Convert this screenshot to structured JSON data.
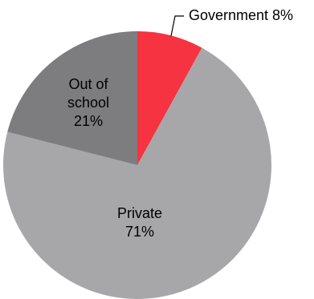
{
  "chart_data": {
    "type": "pie",
    "title": "",
    "start_angle_deg": 0,
    "direction": "clockwise",
    "slices": [
      {
        "name": "Government",
        "value": 8,
        "label": "Government 8%",
        "color": "#f53341",
        "label_lines": []
      },
      {
        "name": "Private",
        "value": 71,
        "label": "Private 71%",
        "color": "#a7a7aa",
        "label_lines": [
          "Private",
          "71%"
        ]
      },
      {
        "name": "Out of school",
        "value": 21,
        "label": "Out of school 21%",
        "color": "#7d7d80",
        "label_lines": [
          "Out of",
          "school",
          "21%"
        ]
      }
    ],
    "legend": "none",
    "callout": {
      "slice": "Government",
      "text": "Government 8%"
    }
  }
}
